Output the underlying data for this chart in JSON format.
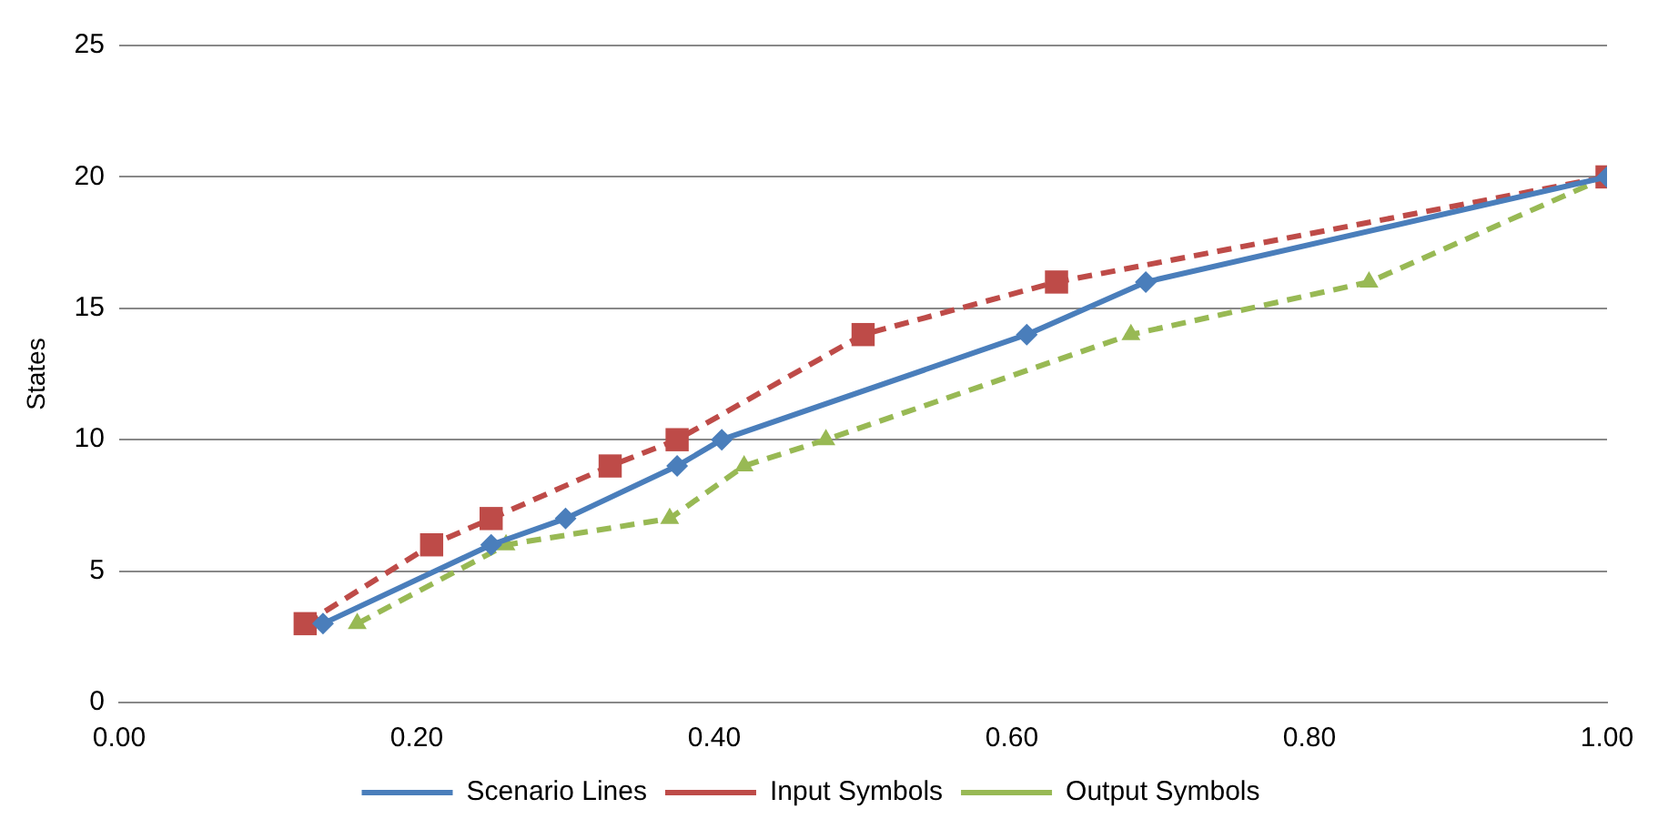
{
  "chart_data": {
    "type": "line",
    "ylabel": "States",
    "xlim": [
      0,
      1
    ],
    "xticks": [
      {
        "value": 0,
        "label": "0.00"
      },
      {
        "value": 0.2,
        "label": "0.20"
      },
      {
        "value": 0.4,
        "label": "0.40"
      },
      {
        "value": 0.6,
        "label": "0.60"
      },
      {
        "value": 0.8,
        "label": "0.80"
      },
      {
        "value": 1,
        "label": "1.00"
      }
    ],
    "ylim": [
      0,
      25
    ],
    "yticks": [
      0,
      5,
      10,
      15,
      20,
      25
    ],
    "grid": "y",
    "legend": "bottom",
    "series": [
      {
        "name": "Scenario Lines",
        "color": "#4a7ebb",
        "marker": "diamond",
        "line_style": "solid",
        "x": [
          0.137,
          0.25,
          0.3,
          0.375,
          0.405,
          0.61,
          0.69,
          1
        ],
        "values": [
          3,
          6,
          7,
          9,
          10,
          14,
          16,
          20
        ]
      },
      {
        "name": "Input Symbols",
        "color": "#be4b48",
        "marker": "square",
        "line_style": "dashed",
        "x": [
          0.125,
          0.21,
          0.25,
          0.33,
          0.375,
          0.5,
          0.63,
          1
        ],
        "values": [
          3,
          6,
          7,
          9,
          10,
          14,
          16,
          20
        ]
      },
      {
        "name": "Output Symbols",
        "color": "#98b954",
        "marker": "triangle",
        "line_style": "dashed",
        "x": [
          0.16,
          0.26,
          0.37,
          0.42,
          0.475,
          0.68,
          0.84,
          1
        ],
        "values": [
          3,
          6,
          7,
          9,
          10,
          14,
          16,
          20
        ]
      }
    ]
  }
}
